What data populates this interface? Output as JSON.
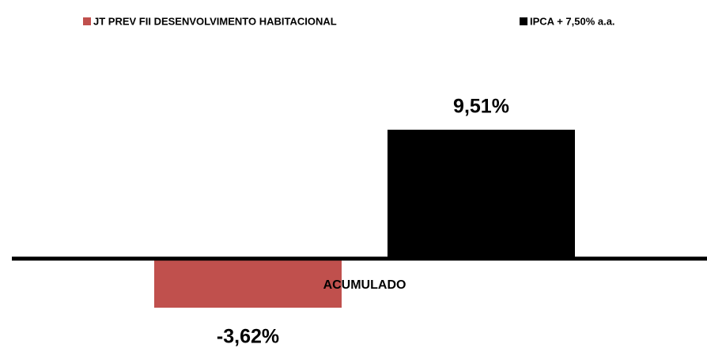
{
  "chart_data": {
    "type": "bar",
    "categories": [
      "ACUMULADO"
    ],
    "series": [
      {
        "name": "JT PREV FII DESENVOLVIMENTO HABITACIONAL",
        "color": "#c0504d",
        "values": [
          -3.62
        ],
        "value_labels": [
          "-3,62%"
        ]
      },
      {
        "name": "IPCA + 7,50% a.a.",
        "color": "#000000",
        "values": [
          9.51
        ],
        "value_labels": [
          "9,51%"
        ]
      }
    ],
    "legend": "top"
  }
}
